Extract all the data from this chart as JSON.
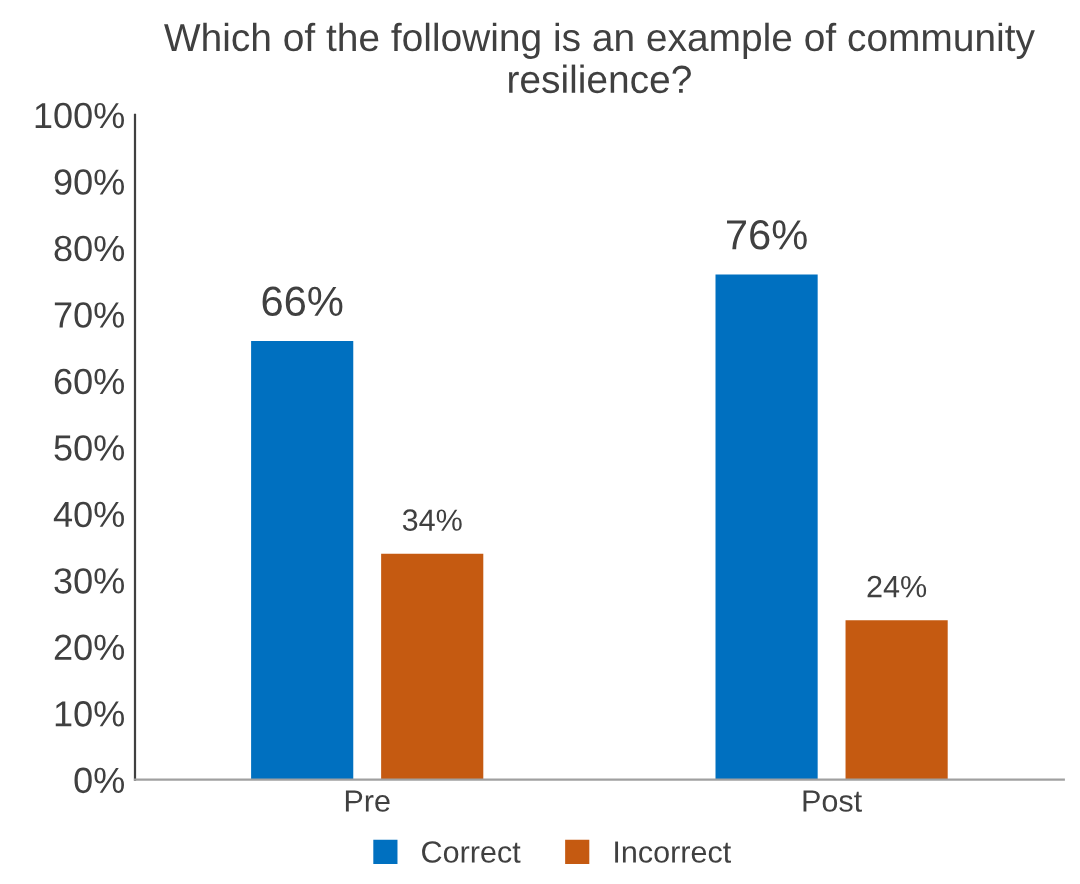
{
  "chart_data": {
    "type": "bar",
    "title": "Which of the following is an example of community resilience?",
    "categories": [
      "Pre",
      "Post"
    ],
    "series": [
      {
        "name": "Correct",
        "color": "#0070c0",
        "values": [
          66,
          76
        ],
        "value_labels": [
          "66%",
          "76%"
        ]
      },
      {
        "name": "Incorrect",
        "color": "#c55a11",
        "values": [
          34,
          24
        ],
        "value_labels": [
          "34%",
          "24%"
        ]
      }
    ],
    "ylim": [
      0,
      100
    ],
    "yticks": [
      {
        "value": 0,
        "label": "0%"
      },
      {
        "value": 10,
        "label": "10%"
      },
      {
        "value": 20,
        "label": "20%"
      },
      {
        "value": 30,
        "label": "30%"
      },
      {
        "value": 40,
        "label": "40%"
      },
      {
        "value": 50,
        "label": "50%"
      },
      {
        "value": 60,
        "label": "60%"
      },
      {
        "value": 70,
        "label": "70%"
      },
      {
        "value": 80,
        "label": "80%"
      },
      {
        "value": 90,
        "label": "90%"
      },
      {
        "value": 100,
        "label": "100%"
      }
    ],
    "grid": false,
    "legend": "bottom"
  }
}
